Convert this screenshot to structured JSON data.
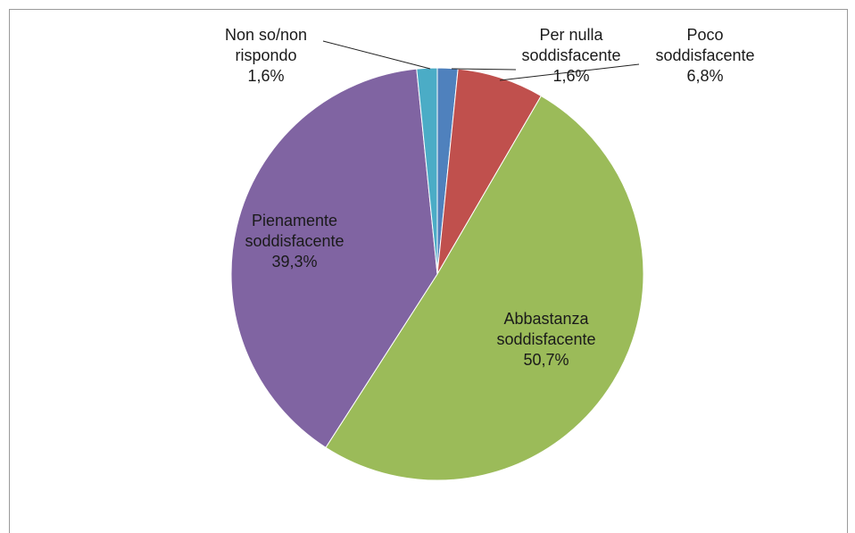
{
  "chart_data": {
    "type": "pie",
    "categories": [
      "Per nulla soddisfacente",
      "Poco soddisfacente",
      "Abbastanza soddisfacente",
      "Pienamente soddisfacente",
      "Non so/non rispondo"
    ],
    "values": [
      1.6,
      6.8,
      50.7,
      39.3,
      1.6
    ],
    "value_labels": [
      "1,6%",
      "6,8%",
      "50,7%",
      "39,3%",
      "1,6%"
    ],
    "colors": [
      "#4f81bd",
      "#c0504d",
      "#9bbb59",
      "#8064a2",
      "#4bacc6"
    ]
  }
}
